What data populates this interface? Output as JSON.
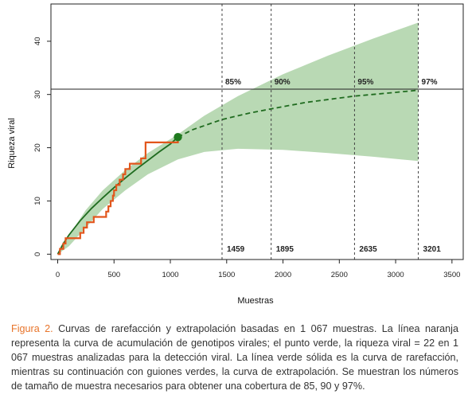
{
  "chart_data": {
    "type": "line",
    "xlabel": "Muestras",
    "ylabel": "Riqueza viral",
    "xlim": [
      -60,
      3600
    ],
    "ylim": [
      -1,
      47
    ],
    "x_ticks": [
      0,
      500,
      1000,
      1500,
      2000,
      2500,
      3000,
      3500
    ],
    "y_ticks": [
      0,
      10,
      20,
      30,
      40
    ],
    "grid": false,
    "colors": {
      "accumulation": "#e2561c",
      "rarefaction": "#1f6b1f",
      "confidence_band": "#b9d9b4",
      "point": "#1f7a1f"
    },
    "confidence_band": {
      "x": [
        0,
        100,
        250,
        400,
        600,
        800,
        1067,
        1300,
        1600,
        2000,
        2400,
        2800,
        3201
      ],
      "lower": [
        0,
        1.5,
        5.0,
        8.5,
        12.0,
        15.0,
        17.8,
        19.2,
        19.8,
        19.6,
        19.0,
        18.3,
        17.5
      ],
      "upper": [
        0,
        3.5,
        8.3,
        12.0,
        15.8,
        19.0,
        22.5,
        26.0,
        29.7,
        33.8,
        37.3,
        40.5,
        43.5
      ]
    },
    "series": [
      {
        "role": "rarefaction",
        "x": [
          0,
          50,
          100,
          200,
          300,
          400,
          500,
          600,
          700,
          800,
          900,
          1000,
          1067
        ],
        "y": [
          0,
          2.0,
          3.6,
          6.3,
          8.6,
          10.6,
          12.5,
          14.3,
          16.0,
          17.6,
          19.2,
          20.7,
          22.0
        ]
      },
      {
        "role": "extrapolation",
        "x": [
          1067,
          1200,
          1459,
          1700,
          1895,
          2200,
          2635,
          2900,
          3201
        ],
        "y": [
          22.0,
          23.4,
          25.3,
          26.5,
          27.3,
          28.5,
          29.7,
          30.2,
          30.8
        ]
      },
      {
        "role": "accumulation",
        "step_x": [
          0,
          20,
          50,
          70,
          180,
          200,
          230,
          260,
          320,
          400,
          430,
          450,
          470,
          490,
          500,
          520,
          550,
          580,
          600,
          620,
          640,
          670,
          700,
          740,
          780,
          1000,
          1067
        ],
        "step_y": [
          0,
          1,
          2,
          3,
          3,
          4,
          5,
          6,
          7,
          7,
          8,
          9,
          10,
          11,
          12,
          13,
          14,
          15,
          16,
          16,
          17,
          17,
          17,
          18,
          21,
          21,
          22
        ]
      }
    ],
    "observed_point": {
      "x": 1067,
      "y": 22
    },
    "reference_line_y": 31,
    "coverage_markers": [
      {
        "x": 1459,
        "coverage": "85%",
        "n": "1459"
      },
      {
        "x": 1895,
        "coverage": "90%",
        "n": "1895"
      },
      {
        "x": 2635,
        "coverage": "95%",
        "n": "2635"
      },
      {
        "x": 3201,
        "coverage": "97%",
        "n": "3201"
      }
    ]
  },
  "caption": {
    "figure_label": "Figura 2.",
    "text": " Curvas de rarefacción y extrapolación basadas en 1 067 muestras. La línea naranja representa la curva de acumulación de genotipos virales; el punto verde, la riqueza viral = 22 en 1 067 muestras analizadas para la detección viral. La línea verde sólida es la curva de rarefacción, mientras su continuación con guiones verdes, la curva de extrapolación. Se muestran los números de tamaño de muestra necesarios para obtener una cobertura de 85, 90 y 97%."
  }
}
